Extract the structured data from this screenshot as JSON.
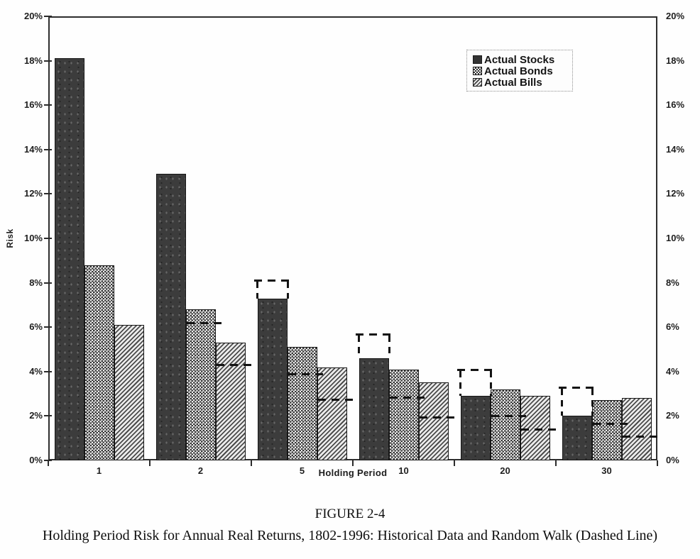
{
  "figure": {
    "label": "FIGURE 2-4",
    "caption": "Holding Period Risk for Annual Real Returns, 1802-1996: Historical Data and Random Walk (Dashed Line)"
  },
  "axis": {
    "ytick_labels": [
      "0%",
      "2%",
      "4%",
      "6%",
      "8%",
      "10%",
      "12%",
      "14%",
      "16%",
      "18%",
      "20%"
    ]
  },
  "chart_data": {
    "type": "bar",
    "title": "",
    "xlabel": "Holding Period",
    "ylabel": "Risk",
    "categories": [
      "1",
      "2",
      "5",
      "10",
      "20",
      "30"
    ],
    "series": [
      {
        "name": "Actual Stocks",
        "pattern": "solid",
        "values": [
          18.1,
          12.9,
          7.3,
          4.6,
          2.9,
          2.0
        ]
      },
      {
        "name": "Actual Bonds",
        "pattern": "crosshatch",
        "values": [
          8.8,
          6.8,
          5.1,
          4.1,
          3.2,
          2.7
        ]
      },
      {
        "name": "Actual Bills",
        "pattern": "diagonal",
        "values": [
          6.1,
          5.3,
          4.2,
          3.5,
          2.9,
          2.8
        ]
      }
    ],
    "random_walk_dashed": {
      "note": "Random walk prediction shown as dashed line",
      "series": [
        {
          "name": "Random Walk Stocks",
          "values": [
            18.1,
            12.8,
            8.1,
            5.7,
            4.1,
            3.3
          ]
        },
        {
          "name": "Random Walk Bonds",
          "values": [
            8.8,
            6.2,
            3.9,
            2.85,
            2.0,
            1.65
          ]
        },
        {
          "name": "Random Walk Bills",
          "values": [
            6.1,
            4.3,
            2.75,
            1.95,
            1.4,
            1.1
          ]
        }
      ]
    },
    "ylim": [
      0,
      20
    ],
    "ytick_step": 2,
    "ytick_format": "percent",
    "legend": [
      "Actual Stocks",
      "Actual Bonds",
      "Actual Bills"
    ],
    "legend_position": "top-right",
    "grid": false
  }
}
